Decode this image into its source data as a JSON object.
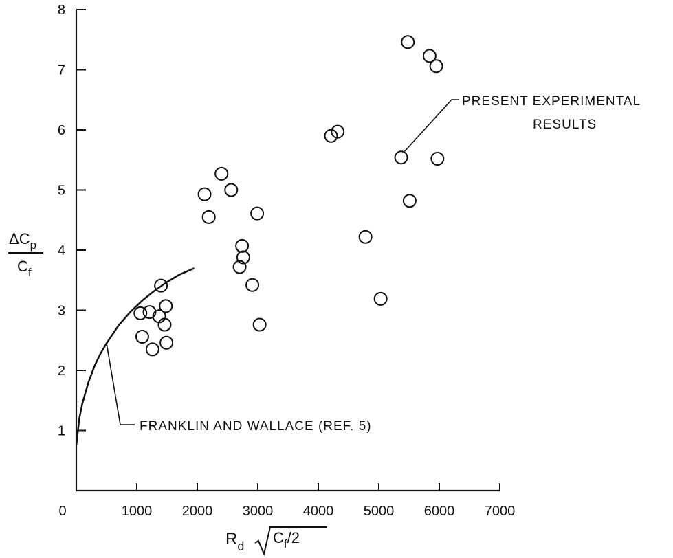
{
  "chart_data": {
    "type": "scatter",
    "xlim": [
      0,
      7000
    ],
    "ylim": [
      0,
      8
    ],
    "x_ticks": [
      "0",
      "1000",
      "2000",
      "3000",
      "4000",
      "5000",
      "6000",
      "7000"
    ],
    "y_ticks": [
      "0",
      "1",
      "2",
      "3",
      "4",
      "5",
      "6",
      "7",
      "8"
    ],
    "xlabel": {
      "r": "R",
      "d": "d",
      "radicand": "C",
      "f": "f",
      "over2": "/2"
    },
    "ylabel": {
      "delta_c": "ΔC",
      "p": "p",
      "c": "C",
      "f": "f"
    },
    "grid": false,
    "series": [
      {
        "name": "PRESENT EXPERIMENTAL RESULTS",
        "marker": "open-circle",
        "points": [
          {
            "x": 1060,
            "y": 2.95
          },
          {
            "x": 1210,
            "y": 2.97
          },
          {
            "x": 1370,
            "y": 2.9
          },
          {
            "x": 1480,
            "y": 3.07
          },
          {
            "x": 1460,
            "y": 2.76
          },
          {
            "x": 1090,
            "y": 2.56
          },
          {
            "x": 1260,
            "y": 2.35
          },
          {
            "x": 1490,
            "y": 2.46
          },
          {
            "x": 1400,
            "y": 3.41
          },
          {
            "x": 2120,
            "y": 4.93
          },
          {
            "x": 2190,
            "y": 4.55
          },
          {
            "x": 2400,
            "y": 5.27
          },
          {
            "x": 2560,
            "y": 5.0
          },
          {
            "x": 2990,
            "y": 4.61
          },
          {
            "x": 2740,
            "y": 4.07
          },
          {
            "x": 2760,
            "y": 3.88
          },
          {
            "x": 2700,
            "y": 3.72
          },
          {
            "x": 2910,
            "y": 3.42
          },
          {
            "x": 3030,
            "y": 2.76
          },
          {
            "x": 4210,
            "y": 5.9
          },
          {
            "x": 4320,
            "y": 5.97
          },
          {
            "x": 4780,
            "y": 4.22
          },
          {
            "x": 5030,
            "y": 3.19
          },
          {
            "x": 5370,
            "y": 5.54
          },
          {
            "x": 5510,
            "y": 4.82
          },
          {
            "x": 5480,
            "y": 7.46
          },
          {
            "x": 5840,
            "y": 7.23
          },
          {
            "x": 5950,
            "y": 7.06
          },
          {
            "x": 5970,
            "y": 5.52
          }
        ]
      },
      {
        "name": "FRANKLIN AND WALLACE (REF. 5)",
        "marker": "line",
        "points": [
          {
            "x": 0,
            "y": 0.75
          },
          {
            "x": 50,
            "y": 1.2
          },
          {
            "x": 100,
            "y": 1.45
          },
          {
            "x": 200,
            "y": 1.8
          },
          {
            "x": 300,
            "y": 2.07
          },
          {
            "x": 400,
            "y": 2.28
          },
          {
            "x": 500,
            "y": 2.45
          },
          {
            "x": 700,
            "y": 2.75
          },
          {
            "x": 900,
            "y": 2.98
          },
          {
            "x": 1100,
            "y": 3.17
          },
          {
            "x": 1300,
            "y": 3.33
          },
          {
            "x": 1500,
            "y": 3.47
          },
          {
            "x": 1700,
            "y": 3.59
          },
          {
            "x": 1950,
            "y": 3.7
          }
        ]
      }
    ],
    "annotations": [
      {
        "id": "present",
        "text_lines": [
          "PRESENT EXPERIMENTAL",
          "RESULTS"
        ]
      },
      {
        "id": "franklin",
        "text_lines": [
          "FRANKLIN AND WALLACE (REF. 5)"
        ]
      }
    ]
  }
}
